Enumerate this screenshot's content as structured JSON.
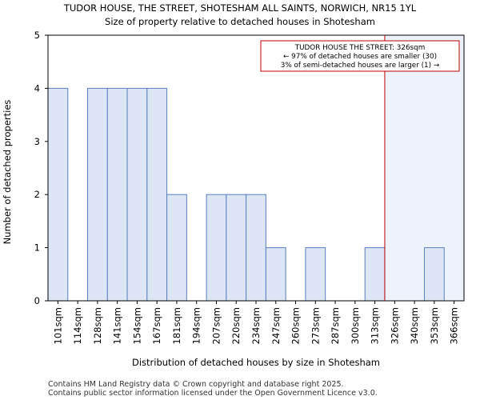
{
  "chart_data": {
    "type": "bar",
    "title": "TUDOR HOUSE, THE STREET, SHOTESHAM ALL SAINTS, NORWICH, NR15 1YL",
    "subtitle": "Size of property relative to detached houses in Shotesham",
    "xlabel": "Distribution of detached houses by size in Shotesham",
    "ylabel": "Number of detached properties",
    "categories": [
      "101sqm",
      "114sqm",
      "128sqm",
      "141sqm",
      "154sqm",
      "167sqm",
      "181sqm",
      "194sqm",
      "207sqm",
      "220sqm",
      "234sqm",
      "247sqm",
      "260sqm",
      "273sqm",
      "287sqm",
      "300sqm",
      "313sqm",
      "326sqm",
      "340sqm",
      "353sqm",
      "366sqm"
    ],
    "values": [
      4,
      0,
      4,
      4,
      4,
      4,
      2,
      0,
      2,
      2,
      2,
      1,
      0,
      1,
      0,
      0,
      1,
      0,
      0,
      1,
      0
    ],
    "ylim": [
      0,
      5
    ],
    "yticks": [
      0,
      1,
      2,
      3,
      4,
      5
    ],
    "grid": false,
    "marker": {
      "value_label": "326sqm",
      "category_index": 17,
      "color": "#c00000"
    },
    "annotation": {
      "line1": "TUDOR HOUSE THE STREET: 326sqm",
      "line2": "← 97% of detached houses are smaller (30)",
      "line3": "3% of semi-detached houses are larger (1) →"
    },
    "colors": {
      "bar_fill": "#dce6f5",
      "bar_stroke": "#5b7fc0",
      "highlight_region": "#edf2fb"
    }
  },
  "footer": {
    "line1": "Contains HM Land Registry data © Crown copyright and database right 2025.",
    "line2": "Contains public sector information licensed under the Open Government Licence v3.0."
  }
}
